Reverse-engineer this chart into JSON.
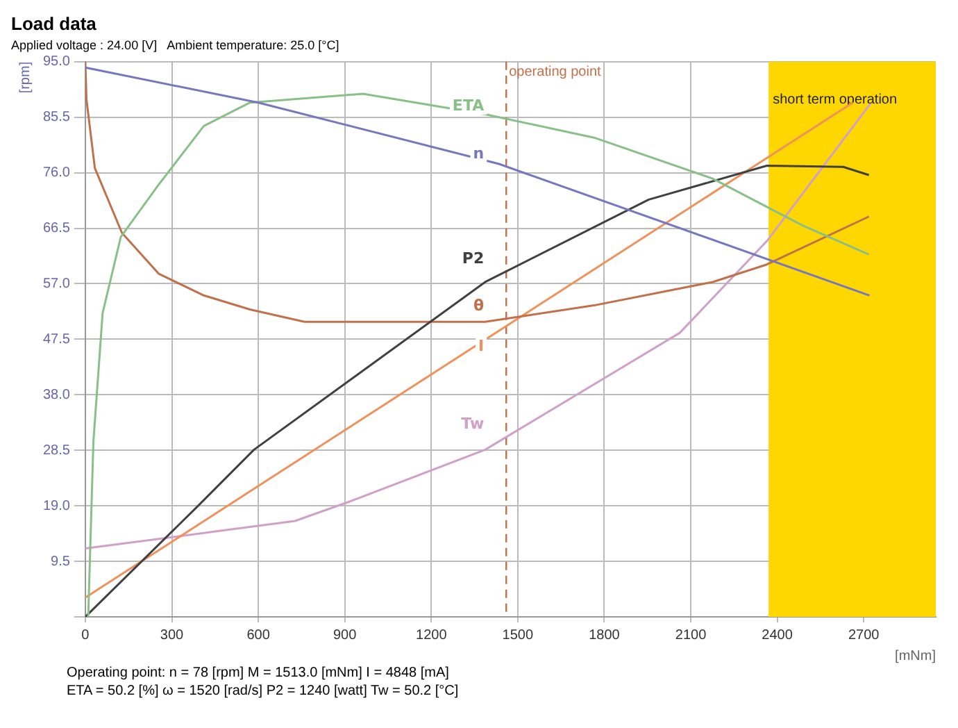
{
  "chart_data": {
    "type": "line",
    "title": "Load data",
    "subtitle": "Applied voltage : 24.00 [V]   Ambient temperature: 25.0 [°C]",
    "xlabel": "[mNm]",
    "ylabel": "[rpm]",
    "xlim": [
      0,
      2950
    ],
    "xticks": [
      0,
      300,
      600,
      900,
      1200,
      1500,
      1800,
      2100,
      2400,
      2700
    ],
    "ylim": [
      0,
      95
    ],
    "yticks": [
      {
        "value": 0,
        "label": null
      },
      {
        "value": 9.5,
        "label": "9.5"
      },
      {
        "value": 19,
        "label": "19.0"
      },
      {
        "value": 28.5,
        "label": "28.5"
      },
      {
        "value": 38,
        "label": "38.0"
      },
      {
        "value": 47.5,
        "label": "47.5"
      },
      {
        "value": 57,
        "label": "57.0"
      },
      {
        "value": 66.5,
        "label": "66.5"
      },
      {
        "value": 76,
        "label": "76.0"
      },
      {
        "value": 85.5,
        "label": "85.5"
      },
      {
        "value": 95,
        "label": "95.0"
      }
    ],
    "grid": true,
    "legend": false,
    "marker": "none",
    "line_style": "solid",
    "series": [
      {
        "name": "n",
        "color": "#7777c0",
        "x": [
          0,
          600,
          1435,
          2720
        ],
        "values": [
          94,
          88,
          77.5,
          55
        ]
      },
      {
        "name": "ETA",
        "color": "#88c088",
        "x": [
          10,
          28,
          60,
          123,
          255,
          411,
          571,
          963,
          1387,
          1765,
          2176,
          2487,
          2718
        ],
        "values": [
          0,
          30,
          52,
          65,
          74,
          84,
          88,
          89.5,
          86,
          82,
          75,
          67,
          62
        ]
      },
      {
        "name": "P2",
        "color": "#404040",
        "x": [
          0,
          387,
          585,
          1387,
          1954,
          2364,
          2629,
          2718
        ],
        "values": [
          0,
          18.8,
          28.6,
          57.3,
          71.4,
          77.2,
          77,
          75.6
        ]
      },
      {
        "name": "θ",
        "color": "#c0704a",
        "x": [
          0,
          4,
          33,
          127,
          255,
          411,
          571,
          760,
          1387,
          1765,
          2176,
          2364,
          2718
        ],
        "values": [
          95,
          88.5,
          76.8,
          65.7,
          58.7,
          55,
          52.6,
          50.5,
          50.5,
          53.3,
          57.3,
          60.3,
          68.5
        ]
      },
      {
        "name": "I",
        "color": "#f0905a",
        "x": [
          0,
          2662
        ],
        "values": [
          3.3,
          88
        ]
      },
      {
        "name": "Tw",
        "color": "#d0a0c8",
        "x": [
          0,
          727,
          915,
          1387,
          2062,
          2364,
          2723
        ],
        "values": [
          11.7,
          16.4,
          19.7,
          28.6,
          48.6,
          64.3,
          87.8
        ]
      }
    ],
    "ref_lines": [
      {
        "axis": "x",
        "value": 1460,
        "label": "operating point",
        "color": "#c0704a",
        "line_style": "dashed"
      }
    ],
    "bands": [
      {
        "axis": "x",
        "from": 2370,
        "to": 2950,
        "label": "short term operation",
        "color": "#ffd700"
      }
    ],
    "annotations": [
      "Operating point:   n = 78 [rpm]   M = 1513.0 [mNm]   I = 4848 [mA]",
      "ETA = 50.2 [%]   ω = 1520 [rad/s]   P2 = 1240 [watt]   Tw = 50.2 [°C]"
    ]
  }
}
